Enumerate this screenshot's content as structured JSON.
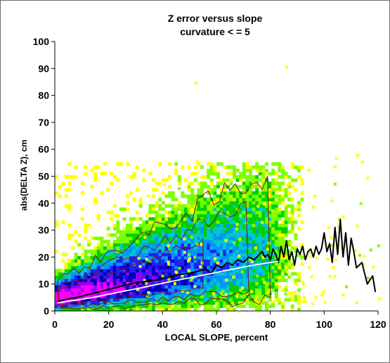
{
  "chart_data": {
    "type": "heatmap",
    "title": "Z error versus slope",
    "subtitle": "curvature < = 5",
    "xlabel": "LOCAL SLOPE, percent",
    "ylabel": "abs(DELTA Z), cm",
    "xlim": [
      0,
      120
    ],
    "ylim": [
      0,
      100
    ],
    "xticks": [
      "0",
      "20",
      "40",
      "60",
      "80",
      "100",
      "120"
    ],
    "yticks": [
      "0",
      "10",
      "20",
      "30",
      "40",
      "50",
      "60",
      "70",
      "80",
      "90",
      "100"
    ],
    "grid": false,
    "colors": {
      "density_low": "#ffff00",
      "density_2": "#7fff00",
      "density_3": "#00d000",
      "density_4": "#00c8c8",
      "density_5": "#0096ff",
      "density_6": "#2020ff",
      "density_7": "#0000b4",
      "density_8": "#9600ff",
      "density_high": "#ff00ff",
      "contour": "#7a1414",
      "mean_line": "#000000",
      "median_line": "#ffffff"
    },
    "series": [
      {
        "x": [
          1,
          3,
          5,
          8,
          10,
          14,
          18,
          22,
          26,
          30,
          34,
          38,
          42,
          46,
          50,
          54,
          56,
          58,
          60,
          62,
          64,
          66,
          68,
          70,
          72,
          74,
          76,
          77,
          78,
          79,
          80,
          81,
          82,
          83,
          84,
          85,
          86,
          87,
          88,
          89,
          90,
          91,
          92,
          93,
          94,
          95,
          96,
          97,
          98,
          99,
          100,
          101,
          102,
          103,
          104,
          105,
          106,
          107,
          108,
          109,
          110,
          111,
          112,
          114,
          116,
          118,
          119
        ],
        "y": [
          3.5,
          4,
          4.5,
          5,
          5.5,
          6.5,
          7.5,
          8.5,
          9.5,
          10.5,
          11,
          11.5,
          12.5,
          13.5,
          14,
          15,
          15.5,
          14,
          17,
          16,
          18,
          17,
          19,
          18,
          20,
          19,
          21,
          22,
          20,
          21,
          19,
          23,
          21,
          18,
          24,
          20,
          26,
          19,
          22,
          17,
          23,
          21,
          24,
          19,
          22,
          23,
          20,
          24,
          21,
          23,
          29,
          22,
          25,
          18,
          31,
          21,
          34,
          20,
          29,
          17,
          27,
          22,
          16,
          18,
          10,
          13,
          7
        ]
      },
      {
        "x": [
          1,
          5,
          10,
          15,
          20,
          25,
          30,
          35,
          40,
          45,
          50,
          55,
          60,
          65,
          70,
          75,
          80,
          83
        ],
        "y": [
          3,
          3.6,
          4.3,
          5.2,
          6.2,
          7.2,
          8.2,
          9.2,
          10.3,
          11.3,
          12.3,
          13.3,
          14.3,
          15.3,
          16.3,
          17.2,
          18.0,
          18.4
        ]
      }
    ]
  }
}
